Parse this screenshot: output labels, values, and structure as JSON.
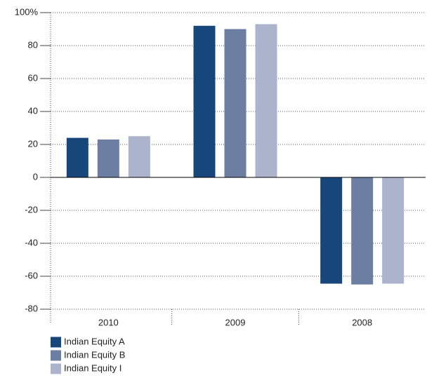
{
  "chart_data": {
    "type": "bar",
    "categories": [
      "2010",
      "2009",
      "2008"
    ],
    "series": [
      {
        "name": "Indian Equity A",
        "color": "#17477a",
        "values": [
          24,
          92,
          64.5
        ]
      },
      {
        "name": "Indian Equity B",
        "color": "#6d7ea3",
        "values": [
          23,
          90,
          65
        ]
      },
      {
        "name": "Indian Equity I",
        "color": "#acb3cc",
        "values": [
          25,
          93,
          64.5
        ]
      }
    ],
    "ylim": [
      -80,
      100
    ],
    "yticks": [
      -80,
      -60,
      -40,
      -20,
      0,
      20,
      40,
      60,
      80,
      {
        "value": 100,
        "label": "100%"
      }
    ],
    "grid": true
  }
}
